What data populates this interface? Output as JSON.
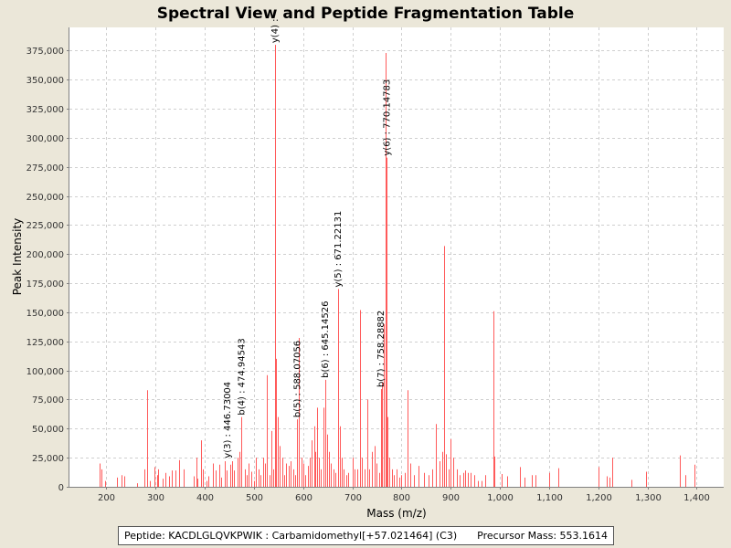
{
  "chart_data": {
    "type": "bar",
    "title": "Spectral View and Peptide Fragmentation Table",
    "xlabel": "Mass (m/z)",
    "ylabel": "Peak Intensity",
    "xlim": [
      125,
      1455
    ],
    "ylim": [
      0,
      395000
    ],
    "xticks": [
      200,
      300,
      400,
      500,
      600,
      700,
      800,
      900,
      1000,
      1100,
      1200,
      1300,
      1400
    ],
    "xtick_labels": [
      "200",
      "300",
      "400",
      "500",
      "600",
      "700",
      "800",
      "900",
      "1,000",
      "1,100",
      "1,200",
      "1,300",
      "1,400"
    ],
    "yticks": [
      0,
      25000,
      50000,
      75000,
      100000,
      125000,
      150000,
      175000,
      200000,
      225000,
      250000,
      275000,
      300000,
      325000,
      350000,
      375000
    ],
    "ytick_labels": [
      "0",
      "25,000",
      "50,000",
      "75,000",
      "100,000",
      "125,000",
      "150,000",
      "175,000",
      "200,000",
      "225,000",
      "250,000",
      "275,000",
      "300,000",
      "325,000",
      "350,000",
      "375,000"
    ],
    "grid": true,
    "peak_color": "#ff5a5a",
    "peaks": [
      [
        187,
        20000
      ],
      [
        190,
        15000
      ],
      [
        198,
        5000
      ],
      [
        222,
        8000
      ],
      [
        230,
        10000
      ],
      [
        236,
        9000
      ],
      [
        262,
        3000
      ],
      [
        277,
        15000
      ],
      [
        283,
        83000
      ],
      [
        288,
        5000
      ],
      [
        298,
        17000
      ],
      [
        303,
        10000
      ],
      [
        306,
        15000
      ],
      [
        315,
        7000
      ],
      [
        320,
        12000
      ],
      [
        327,
        9000
      ],
      [
        333,
        14000
      ],
      [
        340,
        14000
      ],
      [
        348,
        23000
      ],
      [
        358,
        15000
      ],
      [
        378,
        9000
      ],
      [
        383,
        25000
      ],
      [
        385,
        7000
      ],
      [
        393,
        40000
      ],
      [
        397,
        15000
      ],
      [
        403,
        5000
      ],
      [
        408,
        9000
      ],
      [
        417,
        20000
      ],
      [
        423,
        14000
      ],
      [
        430,
        19000
      ],
      [
        434,
        8000
      ],
      [
        440,
        22000
      ],
      [
        445,
        14000
      ],
      [
        451,
        19000
      ],
      [
        456,
        22000
      ],
      [
        460,
        14000
      ],
      [
        466,
        25000
      ],
      [
        470,
        30000
      ],
      [
        474.9,
        60000
      ],
      [
        481,
        15000
      ],
      [
        486,
        10000
      ],
      [
        490,
        20000
      ],
      [
        495,
        13000
      ],
      [
        500,
        5000
      ],
      [
        504,
        25000
      ],
      [
        509,
        15000
      ],
      [
        514,
        10000
      ],
      [
        518,
        25000
      ],
      [
        523,
        20000
      ],
      [
        527,
        96000
      ],
      [
        531,
        10000
      ],
      [
        536,
        48000
      ],
      [
        540,
        15000
      ],
      [
        543,
        380000
      ],
      [
        545,
        110000
      ],
      [
        548,
        60000
      ],
      [
        553,
        35000
      ],
      [
        557,
        25000
      ],
      [
        562,
        10000
      ],
      [
        566,
        20000
      ],
      [
        571,
        18000
      ],
      [
        575,
        22000
      ],
      [
        580,
        15000
      ],
      [
        584,
        10000
      ],
      [
        588,
        58000
      ],
      [
        592,
        128000
      ],
      [
        596,
        25000
      ],
      [
        600,
        20000
      ],
      [
        605,
        10000
      ],
      [
        609,
        18000
      ],
      [
        614,
        25000
      ],
      [
        618,
        40000
      ],
      [
        622,
        52000
      ],
      [
        625,
        30000
      ],
      [
        628,
        68000
      ],
      [
        632,
        25000
      ],
      [
        636,
        15000
      ],
      [
        641,
        68000
      ],
      [
        645,
        92000
      ],
      [
        649,
        45000
      ],
      [
        653,
        30000
      ],
      [
        657,
        20000
      ],
      [
        661,
        15000
      ],
      [
        666,
        12000
      ],
      [
        671,
        170000
      ],
      [
        675,
        52000
      ],
      [
        679,
        25000
      ],
      [
        683,
        15000
      ],
      [
        688,
        10000
      ],
      [
        692,
        12000
      ],
      [
        700,
        25000
      ],
      [
        705,
        15000
      ],
      [
        710,
        15000
      ],
      [
        716,
        152000
      ],
      [
        720,
        25000
      ],
      [
        725,
        15000
      ],
      [
        730,
        75000
      ],
      [
        734,
        15000
      ],
      [
        740,
        30000
      ],
      [
        745,
        35000
      ],
      [
        750,
        20000
      ],
      [
        755,
        12000
      ],
      [
        758,
        84000
      ],
      [
        761,
        90000
      ],
      [
        764,
        140000
      ],
      [
        767,
        373000
      ],
      [
        769,
        283000
      ],
      [
        772,
        60000
      ],
      [
        776,
        25000
      ],
      [
        780,
        15000
      ],
      [
        784,
        10000
      ],
      [
        790,
        15000
      ],
      [
        795,
        8000
      ],
      [
        800,
        10000
      ],
      [
        806,
        12000
      ],
      [
        812,
        83000
      ],
      [
        818,
        20000
      ],
      [
        825,
        10000
      ],
      [
        835,
        18000
      ],
      [
        845,
        12000
      ],
      [
        855,
        10000
      ],
      [
        862,
        15000
      ],
      [
        870,
        54000
      ],
      [
        878,
        22000
      ],
      [
        883,
        30000
      ],
      [
        887,
        207000
      ],
      [
        891,
        28000
      ],
      [
        896,
        15000
      ],
      [
        900,
        41000
      ],
      [
        906,
        25000
      ],
      [
        912,
        15000
      ],
      [
        918,
        10000
      ],
      [
        925,
        12000
      ],
      [
        930,
        14000
      ],
      [
        935,
        12000
      ],
      [
        940,
        12000
      ],
      [
        948,
        10000
      ],
      [
        955,
        5000
      ],
      [
        963,
        5000
      ],
      [
        970,
        10000
      ],
      [
        986,
        151000
      ],
      [
        988,
        26000
      ],
      [
        1003,
        11000
      ],
      [
        1015,
        9000
      ],
      [
        1040,
        17000
      ],
      [
        1050,
        8000
      ],
      [
        1065,
        10000
      ],
      [
        1073,
        10000
      ],
      [
        1100,
        12000
      ],
      [
        1118,
        16000
      ],
      [
        1200,
        17000
      ],
      [
        1217,
        9000
      ],
      [
        1222,
        8000
      ],
      [
        1228,
        25000
      ],
      [
        1268,
        6000
      ],
      [
        1297,
        13000
      ],
      [
        1365,
        27000
      ],
      [
        1377,
        10000
      ],
      [
        1395,
        19000
      ]
    ],
    "annotations": [
      {
        "mz": 543.0,
        "intensity": 380000,
        "label": "y(4) :"
      },
      {
        "mz": 446.73004,
        "intensity": 23000,
        "label": "y(3) : 446.73004"
      },
      {
        "mz": 474.94543,
        "intensity": 60000,
        "label": "b(4) : 474.94543"
      },
      {
        "mz": 588.07056,
        "intensity": 58000,
        "label": "b(5) : 588.07056"
      },
      {
        "mz": 645.14526,
        "intensity": 92000,
        "label": "b(6) : 645.14526"
      },
      {
        "mz": 671.22131,
        "intensity": 170000,
        "label": "y(5) : 671.22131"
      },
      {
        "mz": 758.28882,
        "intensity": 84000,
        "label": "b(7) : 758.28882"
      },
      {
        "mz": 770.14783,
        "intensity": 283000,
        "label": "y(6) : 770.14783"
      }
    ]
  },
  "footer": {
    "peptide": "Peptide: KACDLGLQVKPWIK : Carbamidomethyl[+57.021464] (C3)",
    "precursor": "Precursor Mass: 553.1614"
  }
}
